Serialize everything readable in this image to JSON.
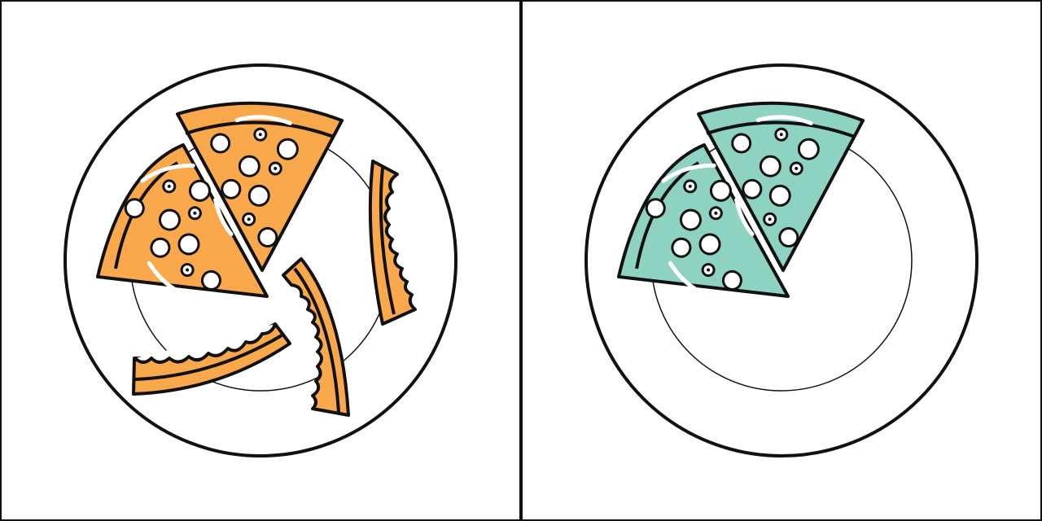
{
  "colors": {
    "background": "#ffffff",
    "outline": "#111111",
    "left_pizza": "#f9a94b",
    "right_pizza": "#8ed3c1",
    "topping": "#ffffff"
  },
  "panels": [
    {
      "side": "left",
      "icons": [
        "plate-icon",
        "pizza-slice-icon",
        "pizza-slice-icon",
        "eaten-crust-icon",
        "eaten-crust-icon",
        "eaten-crust-icon"
      ]
    },
    {
      "side": "right",
      "icons": [
        "plate-icon",
        "pizza-slice-icon",
        "pizza-slice-icon"
      ]
    }
  ]
}
